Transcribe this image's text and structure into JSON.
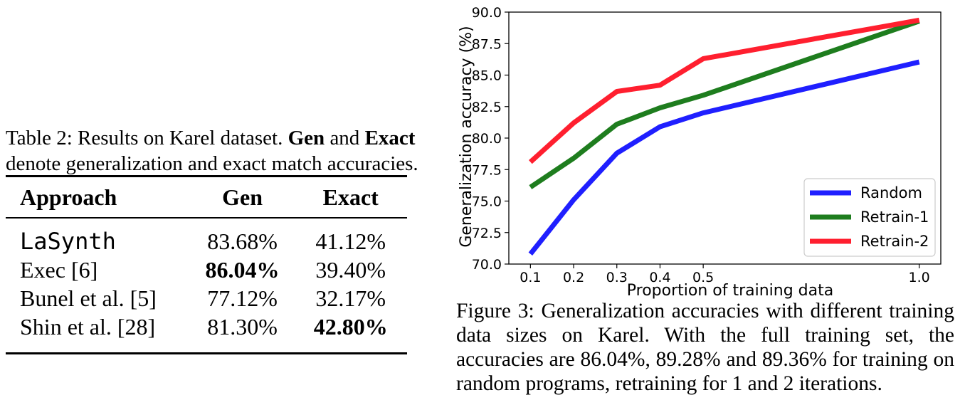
{
  "table": {
    "caption_label": "Table 2:",
    "caption_text": "Results on Karel dataset.",
    "caption_bold1": "Gen",
    "caption_and": "and",
    "caption_bold2": "Exact",
    "caption_rest": "denote generalization and exact match accuracies.",
    "headers": [
      "Approach",
      "Gen",
      "Exact"
    ],
    "rows": [
      {
        "approach": "LaSynth",
        "gen": "83.68%",
        "exact": "41.12%",
        "gen_bold": false,
        "exact_bold": false
      },
      {
        "approach": "Exec [6]",
        "gen": "86.04%",
        "exact": "39.40%",
        "gen_bold": true,
        "exact_bold": false
      },
      {
        "approach": "Bunel et al. [5]",
        "gen": "77.12%",
        "exact": "32.17%",
        "gen_bold": false,
        "exact_bold": false
      },
      {
        "approach": "Shin et al. [28]",
        "gen": "81.30%",
        "exact": "42.80%",
        "gen_bold": false,
        "exact_bold": true
      }
    ]
  },
  "figure": {
    "caption_label": "Figure 3:",
    "caption_text": "Generalization accuracies with different training data sizes on Karel. With the full training set, the accuracies are 86.04%, 89.28% and 89.36% for training on random programs, retraining for 1 and 2 iterations."
  },
  "chart_data": {
    "type": "line",
    "xlabel": "Proportion of training data",
    "ylabel": "Generalization accuracy (%)",
    "x": [
      0.1,
      0.2,
      0.3,
      0.4,
      0.5,
      1.0
    ],
    "xticks": [
      "0.1",
      "0.2",
      "0.3",
      "0.4",
      "0.5",
      "1.0"
    ],
    "ylim": [
      70.0,
      90.0
    ],
    "yticks": [
      "70.0",
      "72.5",
      "75.0",
      "77.5",
      "80.0",
      "82.5",
      "85.0",
      "87.5",
      "90.0"
    ],
    "legend_position": "lower-right",
    "series": [
      {
        "name": "Random",
        "color": "#1f1fff",
        "values": [
          70.8,
          75.1,
          78.8,
          80.9,
          82.0,
          86.04
        ]
      },
      {
        "name": "Retrain-1",
        "color": "#1e7d1e",
        "values": [
          76.1,
          78.4,
          81.1,
          82.4,
          83.4,
          89.28
        ]
      },
      {
        "name": "Retrain-2",
        "color": "#ff1f2f",
        "values": [
          78.1,
          81.2,
          83.7,
          84.2,
          86.3,
          89.36
        ]
      }
    ]
  }
}
